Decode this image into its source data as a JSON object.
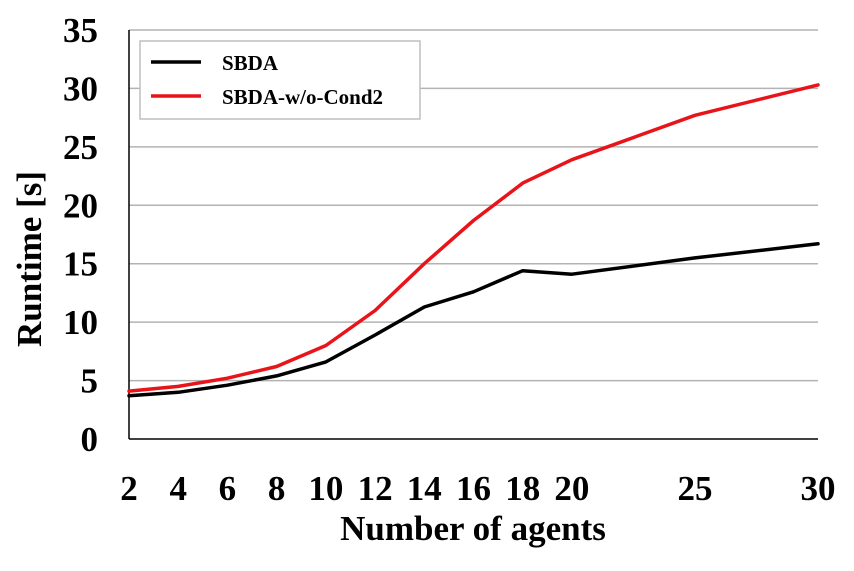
{
  "chart_data": {
    "type": "line",
    "title": "",
    "xlabel": "Number of agents",
    "ylabel": "Runtime [s]",
    "x": [
      2,
      4,
      6,
      8,
      10,
      12,
      14,
      16,
      18,
      20,
      25,
      30
    ],
    "x_ticks": [
      2,
      4,
      6,
      8,
      10,
      12,
      14,
      16,
      18,
      20,
      25,
      30
    ],
    "y_ticks": [
      0,
      5,
      10,
      15,
      20,
      25,
      30,
      35
    ],
    "ylim": [
      0,
      35
    ],
    "grid": "horizontal",
    "legend_position": "top-left",
    "series": [
      {
        "name": "SBDA",
        "color": "#000000",
        "values": [
          3.7,
          4.0,
          4.6,
          5.4,
          6.6,
          8.9,
          11.3,
          12.6,
          14.4,
          14.1,
          15.5,
          16.7
        ]
      },
      {
        "name": "SBDA-w/o-Cond2",
        "color": "#e8141a",
        "values": [
          4.1,
          4.5,
          5.2,
          6.2,
          8.0,
          11.0,
          15.0,
          18.7,
          21.9,
          23.9,
          27.7,
          30.3
        ]
      }
    ]
  }
}
